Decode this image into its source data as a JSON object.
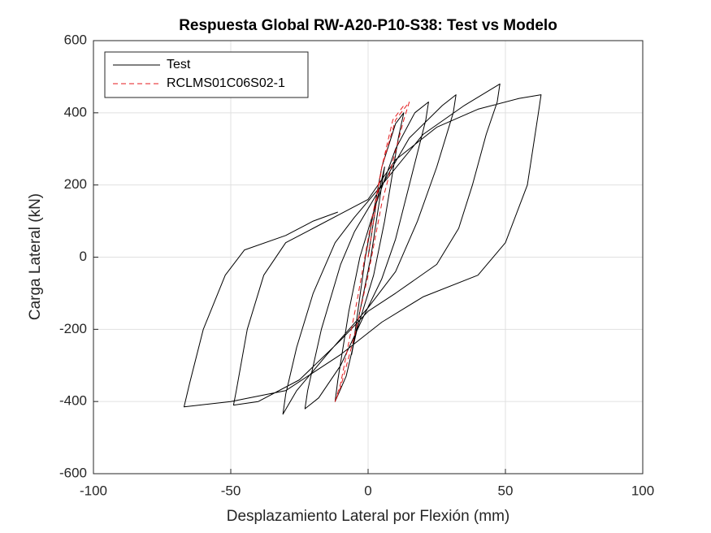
{
  "chart_data": {
    "type": "line",
    "title": "Respuesta Global RW-A20-P10-S38: Test vs Modelo",
    "x_label": "Desplazamiento Lateral por Flexión (mm)",
    "y_label": "Carga Lateral (kN)",
    "xlim": [
      -100,
      100
    ],
    "xticks": [
      -100,
      -50,
      0,
      50,
      100
    ],
    "ylim": [
      -600,
      600
    ],
    "yticks": [
      -600,
      -400,
      -200,
      0,
      200,
      400,
      600
    ],
    "grid": true,
    "legend": "northwest",
    "series": [
      {
        "name": "Test",
        "color": "#000000",
        "line_style": "solid",
        "x": [
          0,
          3,
          6,
          5,
          1,
          -3,
          -6,
          -5,
          -1,
          5,
          10,
          13,
          11,
          6,
          2,
          -4,
          -8,
          -12,
          -11,
          -7,
          -3,
          3,
          10,
          17,
          22,
          21,
          15,
          10,
          5,
          -2,
          -10,
          -18,
          -23,
          -22,
          -17,
          -10,
          -5,
          2,
          15,
          27,
          32,
          31,
          25,
          18,
          10,
          0,
          -15,
          -26,
          -31,
          -30,
          -26,
          -20,
          -12,
          -5,
          5,
          20,
          35,
          48,
          47,
          43,
          38,
          33,
          25,
          10,
          0,
          -10,
          -25,
          -40,
          -49,
          -48,
          -44,
          -38,
          -30,
          -20,
          -10,
          0,
          10,
          25,
          40,
          55,
          63,
          62,
          58,
          50,
          40,
          20,
          5,
          -10,
          -30,
          -50,
          -67,
          -65,
          -60,
          -52,
          -45,
          -30,
          -20,
          -11
        ],
        "values": [
          0,
          150,
          250,
          200,
          0,
          -150,
          -270,
          -220,
          0,
          250,
          370,
          400,
          330,
          100,
          -50,
          -200,
          -330,
          -400,
          -340,
          -150,
          0,
          150,
          300,
          400,
          430,
          380,
          200,
          50,
          -60,
          -170,
          -300,
          -390,
          -420,
          -370,
          -200,
          -20,
          70,
          160,
          330,
          420,
          450,
          400,
          250,
          100,
          -40,
          -140,
          -270,
          -370,
          -435,
          -380,
          -250,
          -100,
          40,
          110,
          200,
          340,
          420,
          480,
          430,
          340,
          200,
          80,
          -20,
          -100,
          -150,
          -230,
          -340,
          -400,
          -410,
          -370,
          -200,
          -50,
          40,
          80,
          120,
          160,
          270,
          360,
          410,
          440,
          450,
          400,
          200,
          40,
          -50,
          -110,
          -180,
          -270,
          -370,
          -400,
          -415,
          -350,
          -200,
          -50,
          20,
          60,
          100,
          125
        ]
      },
      {
        "name": "RCLMS01C06S02-1",
        "color": "#e41a1c",
        "line_style": "dashed",
        "x": [
          0,
          5,
          10,
          15,
          13,
          5,
          0,
          -5,
          -10,
          -12,
          -10,
          -4,
          0,
          5,
          9,
          13
        ],
        "values": [
          0,
          250,
          380,
          430,
          380,
          150,
          -50,
          -220,
          -360,
          -400,
          -350,
          -120,
          50,
          250,
          380,
          420
        ]
      }
    ]
  }
}
